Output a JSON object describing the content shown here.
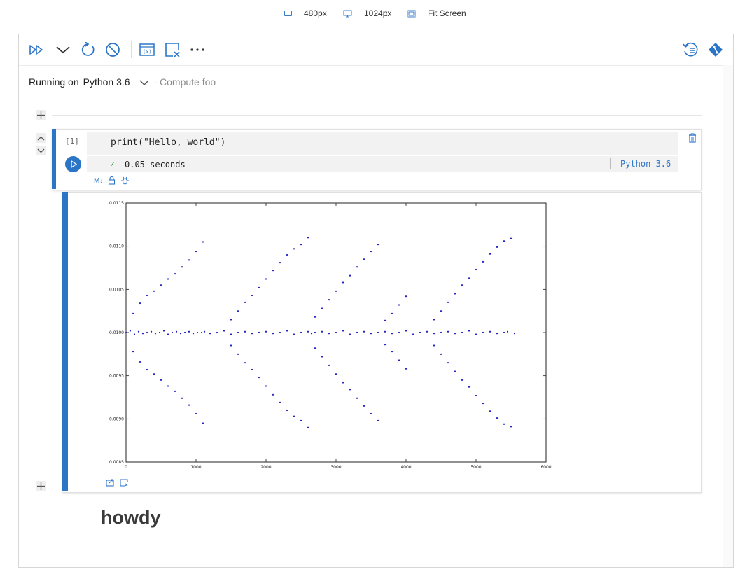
{
  "view_options": [
    {
      "label": "480px",
      "icon": "tablet-icon"
    },
    {
      "label": "1024px",
      "icon": "monitor-icon"
    },
    {
      "label": "Fit Screen",
      "icon": "fit-screen-icon"
    }
  ],
  "toolbar": {
    "icons": [
      "run-all-icon",
      "collapse-icon",
      "restart-icon",
      "interrupt-icon",
      "variables-icon",
      "clear-output-icon",
      "more-icon",
      "history-icon",
      "git-icon"
    ]
  },
  "kernel": {
    "prefix": "Running on",
    "name": "Python 3.6",
    "suffix": "- Compute foo"
  },
  "code_cell": {
    "exec_count": "[1]",
    "source": "print(\"Hello, world\")",
    "status_text": "0.05 seconds",
    "kernel_label": "Python 3.6",
    "footer_icons": [
      "markdown-icon",
      "lock-icon",
      "debug-icon"
    ]
  },
  "colors": {
    "accent": "#2b75c7",
    "success": "#3a9a3a",
    "points": "#1f1fbf"
  },
  "chart_data": {
    "type": "scatter",
    "title": "",
    "xlabel": "",
    "ylabel": "",
    "xlim": [
      0,
      6000
    ],
    "ylim": [
      0.0085,
      0.0115
    ],
    "xticks": [
      "0",
      "1000",
      "2000",
      "3000",
      "4000",
      "5000",
      "6000"
    ],
    "yticks": [
      "0.0085",
      "0.0090",
      "0.0095",
      "0.0100",
      "0.0105",
      "0.0110",
      "0.0115"
    ],
    "grid": false,
    "series": [
      {
        "description_of_shape": "",
        "x": [
          0,
          60,
          120,
          180,
          240,
          300,
          360,
          420,
          480,
          540,
          600,
          660,
          720,
          780,
          840,
          900,
          960,
          1020,
          1080,
          1120,
          1200,
          1300,
          1400,
          1500,
          1600,
          1700,
          1800,
          1900,
          2000,
          2100,
          2200,
          2300,
          2400,
          2500,
          2600,
          2650,
          2700,
          2800,
          2900,
          3000,
          3100,
          3200,
          3300,
          3400,
          3500,
          3600,
          3700,
          3800,
          3900,
          4000,
          4100,
          4200,
          4300,
          4400,
          4500,
          4600,
          4700,
          4800,
          4900,
          5000,
          5100,
          5200,
          5300,
          5400,
          5450,
          5550
        ],
        "y": [
          0.01,
          0.01002,
          0.00998,
          0.01001,
          0.00999,
          0.01,
          0.01001,
          0.00999,
          0.01,
          0.01002,
          0.00998,
          0.01,
          0.01001,
          0.00999,
          0.01,
          0.01001,
          0.00999,
          0.01,
          0.01,
          0.01001,
          0.00999,
          0.01,
          0.01002,
          0.00998,
          0.01,
          0.01001,
          0.00999,
          0.01,
          0.01001,
          0.00999,
          0.01,
          0.01002,
          0.00998,
          0.01,
          0.01001,
          0.00999,
          0.01,
          0.01001,
          0.00999,
          0.01,
          0.01002,
          0.00998,
          0.01,
          0.01001,
          0.00999,
          0.01,
          0.01001,
          0.00999,
          0.01,
          0.01002,
          0.00998,
          0.01,
          0.01001,
          0.00999,
          0.01,
          0.01001,
          0.00999,
          0.01,
          0.01002,
          0.00998,
          0.01,
          0.01001,
          0.00999,
          0.01,
          0.01001,
          0.00999
        ]
      },
      {
        "x": [
          100,
          200,
          300,
          400,
          500,
          600,
          700,
          800,
          900,
          1000,
          1100,
          1500,
          1600,
          1700,
          1800,
          1900,
          2000,
          2100,
          2200,
          2300,
          2400,
          2500,
          2600,
          2700,
          2800,
          2900,
          3000,
          3100,
          3200,
          3300,
          3400,
          3500,
          3600,
          3700,
          3800,
          3900,
          4000,
          4400,
          4500,
          4600,
          4700,
          4800,
          4900,
          5000,
          5100,
          5200,
          5300,
          5400,
          5500
        ],
        "y": [
          0.01022,
          0.01034,
          0.01043,
          0.01048,
          0.01055,
          0.01062,
          0.01068,
          0.01076,
          0.01084,
          0.01094,
          0.01105,
          0.01015,
          0.01025,
          0.01035,
          0.01043,
          0.01052,
          0.01062,
          0.01072,
          0.01081,
          0.0109,
          0.01097,
          0.01102,
          0.0111,
          0.01018,
          0.01028,
          0.01038,
          0.01048,
          0.01058,
          0.01066,
          0.01076,
          0.01085,
          0.01094,
          0.01102,
          0.01014,
          0.01022,
          0.01032,
          0.01042,
          0.01015,
          0.01025,
          0.01035,
          0.01045,
          0.01055,
          0.01063,
          0.01073,
          0.01082,
          0.01091,
          0.01099,
          0.01106,
          0.01109
        ]
      },
      {
        "x": [
          100,
          200,
          300,
          400,
          500,
          600,
          700,
          800,
          900,
          1000,
          1100,
          1500,
          1600,
          1700,
          1800,
          1900,
          2000,
          2100,
          2200,
          2300,
          2400,
          2500,
          2600,
          2700,
          2800,
          2900,
          3000,
          3100,
          3200,
          3300,
          3400,
          3500,
          3600,
          3700,
          3800,
          3900,
          4000,
          4400,
          4500,
          4600,
          4700,
          4800,
          4900,
          5000,
          5100,
          5200,
          5300,
          5400,
          5500
        ],
        "y": [
          0.00978,
          0.00966,
          0.00957,
          0.00952,
          0.00945,
          0.00938,
          0.00932,
          0.00924,
          0.00916,
          0.00906,
          0.00895,
          0.00985,
          0.00975,
          0.00965,
          0.00957,
          0.00948,
          0.00938,
          0.00928,
          0.00919,
          0.0091,
          0.00903,
          0.00898,
          0.0089,
          0.00982,
          0.00972,
          0.00962,
          0.00952,
          0.00942,
          0.00934,
          0.00924,
          0.00915,
          0.00906,
          0.00898,
          0.00986,
          0.00978,
          0.00968,
          0.00958,
          0.00985,
          0.00975,
          0.00965,
          0.00955,
          0.00945,
          0.00937,
          0.00927,
          0.00918,
          0.00909,
          0.00901,
          0.00894,
          0.00891
        ]
      }
    ]
  },
  "markdown_cell": {
    "text": "howdy"
  }
}
